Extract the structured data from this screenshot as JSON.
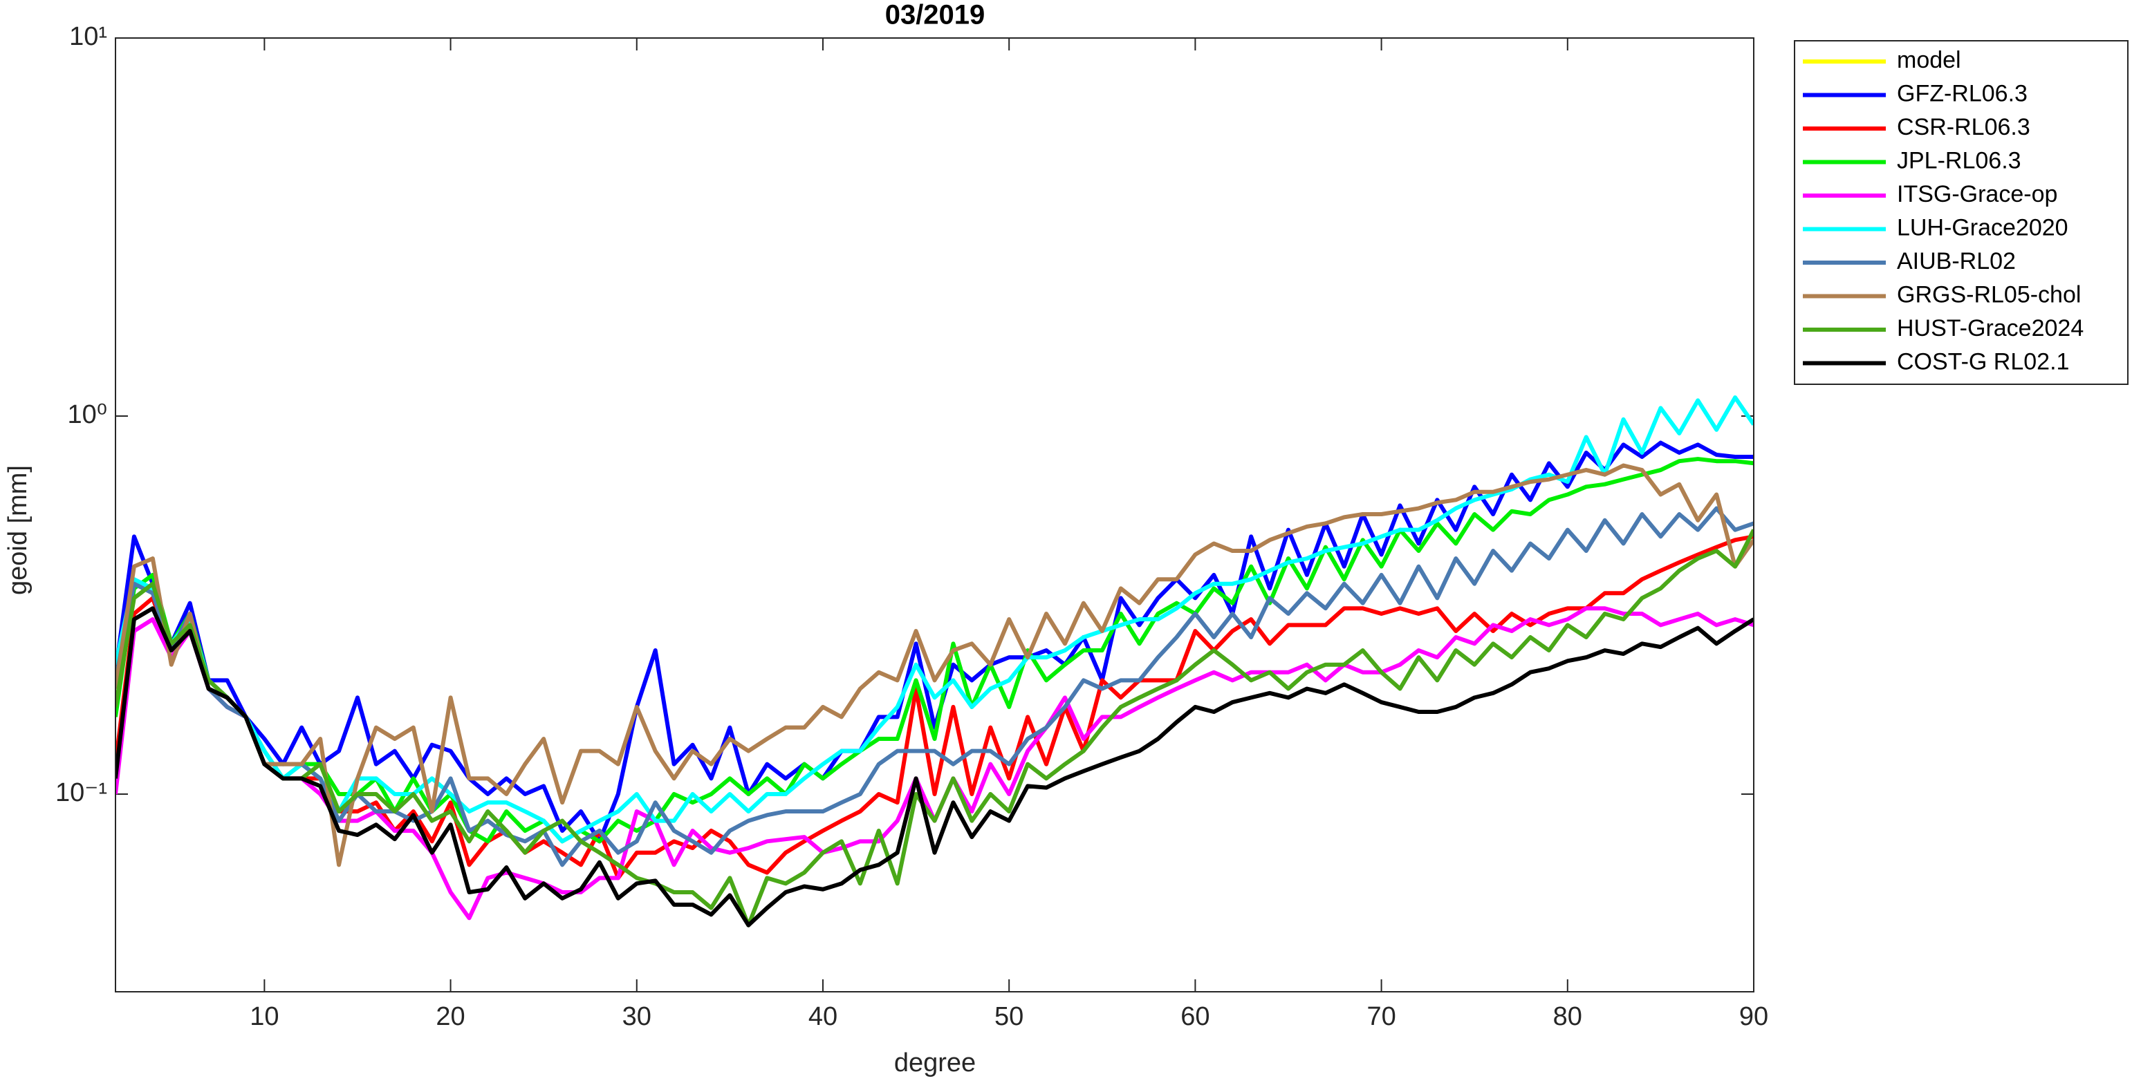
{
  "chart_data": {
    "type": "line",
    "title": "03/2019",
    "xlabel": "degree",
    "ylabel": "geoid [mm]",
    "yscale": "log",
    "xlim": [
      2,
      90
    ],
    "ylim": [
      0.03,
      10
    ],
    "xticks": [
      10,
      20,
      30,
      40,
      50,
      60,
      70,
      80,
      90
    ],
    "yticks": [
      {
        "value": 0.1,
        "label": "10⁻¹"
      },
      {
        "value": 1,
        "label": "10⁰"
      },
      {
        "value": 10,
        "label": "10¹"
      }
    ],
    "grid": false,
    "legend": "outside-northeast",
    "x": [
      2,
      3,
      4,
      5,
      6,
      7,
      8,
      9,
      10,
      11,
      12,
      13,
      14,
      15,
      16,
      17,
      18,
      19,
      20,
      21,
      22,
      23,
      24,
      25,
      26,
      27,
      28,
      29,
      30,
      31,
      32,
      33,
      34,
      35,
      36,
      37,
      38,
      39,
      40,
      41,
      42,
      43,
      44,
      45,
      46,
      47,
      48,
      49,
      50,
      51,
      52,
      53,
      54,
      55,
      56,
      57,
      58,
      59,
      60,
      61,
      62,
      63,
      64,
      65,
      66,
      67,
      68,
      69,
      70,
      71,
      72,
      73,
      74,
      75,
      76,
      77,
      78,
      79,
      80,
      81,
      82,
      83,
      84,
      85,
      86,
      87,
      88,
      89,
      90
    ],
    "series": [
      {
        "name": "model",
        "color": "#ffff00",
        "values": [
          null,
          null,
          null,
          null,
          null,
          null,
          null,
          null,
          null,
          null,
          null,
          null,
          null,
          null,
          null,
          null,
          null,
          null,
          null,
          null,
          null,
          null,
          null,
          null,
          null,
          null,
          null,
          null,
          null,
          null,
          null,
          null,
          null,
          null,
          null,
          null,
          null,
          null,
          null,
          null,
          null,
          null,
          null,
          null,
          null,
          null,
          null,
          null,
          null,
          null,
          null,
          null,
          null,
          null,
          null,
          null,
          null,
          null,
          null,
          null,
          null,
          null,
          null,
          null,
          null,
          null,
          null,
          null,
          null,
          null,
          null,
          null,
          null,
          null,
          null,
          null,
          null,
          null,
          null,
          null,
          null,
          null,
          null,
          null,
          null,
          null,
          null,
          null,
          null
        ]
      },
      {
        "name": "GFZ-RL06.3",
        "color": "#0000ff",
        "values": [
          0.21,
          0.48,
          0.36,
          0.25,
          0.32,
          0.2,
          0.2,
          0.16,
          0.14,
          0.12,
          0.15,
          0.12,
          0.13,
          0.18,
          0.12,
          0.13,
          0.11,
          0.135,
          0.13,
          0.11,
          0.1,
          0.11,
          0.1,
          0.105,
          0.08,
          0.09,
          0.075,
          0.1,
          0.17,
          0.24,
          0.12,
          0.135,
          0.11,
          0.15,
          0.1,
          0.12,
          0.11,
          0.12,
          0.11,
          0.13,
          0.13,
          0.16,
          0.16,
          0.25,
          0.15,
          0.22,
          0.2,
          0.22,
          0.23,
          0.23,
          0.24,
          0.22,
          0.26,
          0.2,
          0.33,
          0.28,
          0.33,
          0.37,
          0.33,
          0.38,
          0.3,
          0.48,
          0.35,
          0.5,
          0.38,
          0.52,
          0.4,
          0.55,
          0.43,
          0.58,
          0.46,
          0.6,
          0.5,
          0.65,
          0.55,
          0.7,
          0.6,
          0.75,
          0.65,
          0.8,
          0.72,
          0.84,
          0.78,
          0.85,
          0.8,
          0.84,
          0.79,
          0.78,
          0.78
        ]
      },
      {
        "name": "CSR-RL06.3",
        "color": "#ff0000",
        "values": [
          0.12,
          0.3,
          0.33,
          0.24,
          0.28,
          0.2,
          0.18,
          0.16,
          0.12,
          0.11,
          0.11,
          0.11,
          0.09,
          0.09,
          0.095,
          0.08,
          0.09,
          0.075,
          0.095,
          0.065,
          0.075,
          0.08,
          0.07,
          0.075,
          0.07,
          0.065,
          0.08,
          0.06,
          0.07,
          0.07,
          0.075,
          0.072,
          0.08,
          0.075,
          0.065,
          0.062,
          0.07,
          0.075,
          0.08,
          0.085,
          0.09,
          0.1,
          0.095,
          0.19,
          0.1,
          0.17,
          0.1,
          0.15,
          0.11,
          0.16,
          0.12,
          0.17,
          0.13,
          0.2,
          0.18,
          0.2,
          0.2,
          0.2,
          0.27,
          0.24,
          0.27,
          0.29,
          0.25,
          0.28,
          0.28,
          0.28,
          0.31,
          0.31,
          0.3,
          0.31,
          0.3,
          0.31,
          0.27,
          0.3,
          0.27,
          0.3,
          0.28,
          0.3,
          0.31,
          0.31,
          0.34,
          0.34,
          0.37,
          0.39,
          0.41,
          0.43,
          0.45,
          0.47,
          0.48
        ]
      },
      {
        "name": "JPL-RL06.3",
        "color": "#00ee00",
        "values": [
          0.16,
          0.35,
          0.38,
          0.25,
          0.3,
          0.2,
          0.18,
          0.16,
          0.13,
          0.11,
          0.12,
          0.12,
          0.1,
          0.1,
          0.11,
          0.09,
          0.11,
          0.09,
          0.1,
          0.08,
          0.075,
          0.09,
          0.08,
          0.085,
          0.075,
          0.08,
          0.075,
          0.085,
          0.08,
          0.085,
          0.1,
          0.095,
          0.1,
          0.11,
          0.1,
          0.11,
          0.1,
          0.12,
          0.11,
          0.12,
          0.13,
          0.14,
          0.14,
          0.2,
          0.14,
          0.25,
          0.17,
          0.22,
          0.17,
          0.24,
          0.2,
          0.22,
          0.24,
          0.24,
          0.3,
          0.25,
          0.3,
          0.32,
          0.3,
          0.35,
          0.32,
          0.4,
          0.32,
          0.42,
          0.35,
          0.45,
          0.37,
          0.47,
          0.4,
          0.5,
          0.44,
          0.52,
          0.46,
          0.55,
          0.5,
          0.56,
          0.55,
          0.6,
          0.62,
          0.65,
          0.66,
          0.68,
          0.7,
          0.72,
          0.76,
          0.77,
          0.76,
          0.76,
          0.75
        ]
      },
      {
        "name": "ITSG-Grace-op",
        "color": "#ff00ff",
        "values": [
          0.1,
          0.27,
          0.29,
          0.23,
          0.27,
          0.19,
          0.17,
          0.16,
          0.12,
          0.11,
          0.11,
          0.1,
          0.085,
          0.085,
          0.09,
          0.08,
          0.08,
          0.07,
          0.055,
          0.047,
          0.06,
          0.062,
          0.06,
          0.058,
          0.055,
          0.055,
          0.06,
          0.06,
          0.09,
          0.085,
          0.065,
          0.08,
          0.072,
          0.07,
          0.072,
          0.075,
          0.076,
          0.077,
          0.07,
          0.072,
          0.075,
          0.075,
          0.085,
          0.11,
          0.085,
          0.11,
          0.09,
          0.12,
          0.1,
          0.13,
          0.15,
          0.18,
          0.14,
          0.16,
          0.16,
          0.17,
          0.18,
          0.19,
          0.2,
          0.21,
          0.2,
          0.21,
          0.21,
          0.21,
          0.22,
          0.2,
          0.22,
          0.21,
          0.21,
          0.22,
          0.24,
          0.23,
          0.26,
          0.25,
          0.28,
          0.27,
          0.29,
          0.28,
          0.29,
          0.31,
          0.31,
          0.3,
          0.3,
          0.28,
          0.29,
          0.3,
          0.28,
          0.29,
          0.28
        ]
      },
      {
        "name": "LUH-Grace2020",
        "color": "#00ffff",
        "values": [
          0.22,
          0.37,
          0.35,
          0.25,
          0.29,
          0.2,
          0.18,
          0.16,
          0.13,
          0.11,
          0.12,
          0.11,
          0.09,
          0.11,
          0.11,
          0.1,
          0.1,
          0.11,
          0.1,
          0.09,
          0.095,
          0.095,
          0.09,
          0.085,
          0.075,
          0.08,
          0.085,
          0.09,
          0.1,
          0.085,
          0.085,
          0.1,
          0.09,
          0.1,
          0.09,
          0.1,
          0.1,
          0.11,
          0.12,
          0.13,
          0.13,
          0.15,
          0.17,
          0.22,
          0.18,
          0.2,
          0.17,
          0.19,
          0.2,
          0.23,
          0.23,
          0.24,
          0.26,
          0.27,
          0.28,
          0.29,
          0.29,
          0.31,
          0.34,
          0.36,
          0.36,
          0.37,
          0.39,
          0.41,
          0.42,
          0.44,
          0.45,
          0.46,
          0.48,
          0.5,
          0.5,
          0.53,
          0.57,
          0.6,
          0.62,
          0.64,
          0.68,
          0.7,
          0.67,
          0.88,
          0.7,
          0.98,
          0.8,
          1.05,
          0.9,
          1.1,
          0.92,
          1.12,
          0.95
        ]
      },
      {
        "name": "AIUB-RL02",
        "color": "#4a7ab0",
        "values": [
          0.2,
          0.36,
          0.34,
          0.24,
          0.3,
          0.19,
          0.17,
          0.16,
          0.12,
          0.12,
          0.12,
          0.11,
          0.085,
          0.1,
          0.09,
          0.09,
          0.085,
          0.09,
          0.11,
          0.08,
          0.085,
          0.078,
          0.075,
          0.08,
          0.065,
          0.075,
          0.08,
          0.07,
          0.075,
          0.095,
          0.08,
          0.075,
          0.07,
          0.08,
          0.085,
          0.088,
          0.09,
          0.09,
          0.09,
          0.095,
          0.1,
          0.12,
          0.13,
          0.13,
          0.13,
          0.12,
          0.13,
          0.13,
          0.12,
          0.14,
          0.15,
          0.17,
          0.2,
          0.19,
          0.2,
          0.2,
          0.23,
          0.26,
          0.3,
          0.26,
          0.3,
          0.26,
          0.33,
          0.3,
          0.34,
          0.31,
          0.36,
          0.32,
          0.38,
          0.32,
          0.4,
          0.33,
          0.42,
          0.36,
          0.44,
          0.39,
          0.46,
          0.42,
          0.5,
          0.44,
          0.53,
          0.46,
          0.55,
          0.48,
          0.55,
          0.5,
          0.57,
          0.5,
          0.52
        ]
      },
      {
        "name": "GRGS-RL05-chol",
        "color": "#b08050",
        "values": [
          0.19,
          0.4,
          0.42,
          0.22,
          0.3,
          0.19,
          0.18,
          0.16,
          0.12,
          0.12,
          0.12,
          0.14,
          0.065,
          0.11,
          0.15,
          0.14,
          0.15,
          0.09,
          0.18,
          0.11,
          0.11,
          0.1,
          0.12,
          0.14,
          0.095,
          0.13,
          0.13,
          0.12,
          0.17,
          0.13,
          0.11,
          0.13,
          0.12,
          0.14,
          0.13,
          0.14,
          0.15,
          0.15,
          0.17,
          0.16,
          0.19,
          0.21,
          0.2,
          0.27,
          0.2,
          0.24,
          0.25,
          0.22,
          0.29,
          0.23,
          0.3,
          0.25,
          0.32,
          0.27,
          0.35,
          0.32,
          0.37,
          0.37,
          0.43,
          0.46,
          0.44,
          0.44,
          0.47,
          0.49,
          0.51,
          0.52,
          0.54,
          0.55,
          0.55,
          0.56,
          0.57,
          0.59,
          0.6,
          0.63,
          0.63,
          0.65,
          0.67,
          0.68,
          0.7,
          0.72,
          0.7,
          0.74,
          0.72,
          0.62,
          0.66,
          0.53,
          0.62,
          0.4,
          0.47
        ]
      },
      {
        "name": "HUST-Grace2024",
        "color": "#4aa818",
        "values": [
          0.17,
          0.33,
          0.36,
          0.25,
          0.28,
          0.2,
          0.18,
          0.16,
          0.12,
          0.11,
          0.11,
          0.12,
          0.09,
          0.1,
          0.1,
          0.09,
          0.1,
          0.085,
          0.09,
          0.075,
          0.09,
          0.08,
          0.07,
          0.08,
          0.085,
          0.075,
          0.07,
          0.065,
          0.06,
          0.058,
          0.055,
          0.055,
          0.05,
          0.06,
          0.045,
          0.06,
          0.058,
          0.062,
          0.07,
          0.075,
          0.058,
          0.08,
          0.058,
          0.1,
          0.085,
          0.11,
          0.085,
          0.1,
          0.09,
          0.12,
          0.11,
          0.12,
          0.13,
          0.15,
          0.17,
          0.18,
          0.19,
          0.2,
          0.22,
          0.24,
          0.22,
          0.2,
          0.21,
          0.19,
          0.21,
          0.22,
          0.22,
          0.24,
          0.21,
          0.19,
          0.23,
          0.2,
          0.24,
          0.22,
          0.25,
          0.23,
          0.26,
          0.24,
          0.28,
          0.26,
          0.3,
          0.29,
          0.33,
          0.35,
          0.39,
          0.42,
          0.44,
          0.4,
          0.5
        ]
      },
      {
        "name": "COST-G RL02.1",
        "color": "#000000",
        "values": [
          0.11,
          0.29,
          0.31,
          0.24,
          0.27,
          0.19,
          0.18,
          0.16,
          0.12,
          0.11,
          0.11,
          0.105,
          0.08,
          0.078,
          0.083,
          0.076,
          0.088,
          0.07,
          0.083,
          0.055,
          0.056,
          0.064,
          0.053,
          0.058,
          0.053,
          0.056,
          0.066,
          0.053,
          0.058,
          0.059,
          0.051,
          0.051,
          0.048,
          0.054,
          0.045,
          0.05,
          0.055,
          0.057,
          0.056,
          0.058,
          0.063,
          0.065,
          0.07,
          0.11,
          0.07,
          0.095,
          0.077,
          0.09,
          0.085,
          0.105,
          0.104,
          0.11,
          0.115,
          0.12,
          0.125,
          0.13,
          0.14,
          0.155,
          0.17,
          0.165,
          0.175,
          0.18,
          0.185,
          0.18,
          0.19,
          0.185,
          0.195,
          0.185,
          0.175,
          0.17,
          0.165,
          0.165,
          0.17,
          0.18,
          0.185,
          0.195,
          0.21,
          0.215,
          0.225,
          0.23,
          0.24,
          0.235,
          0.25,
          0.245,
          0.26,
          0.275,
          0.25,
          0.27,
          0.29
        ]
      }
    ]
  }
}
